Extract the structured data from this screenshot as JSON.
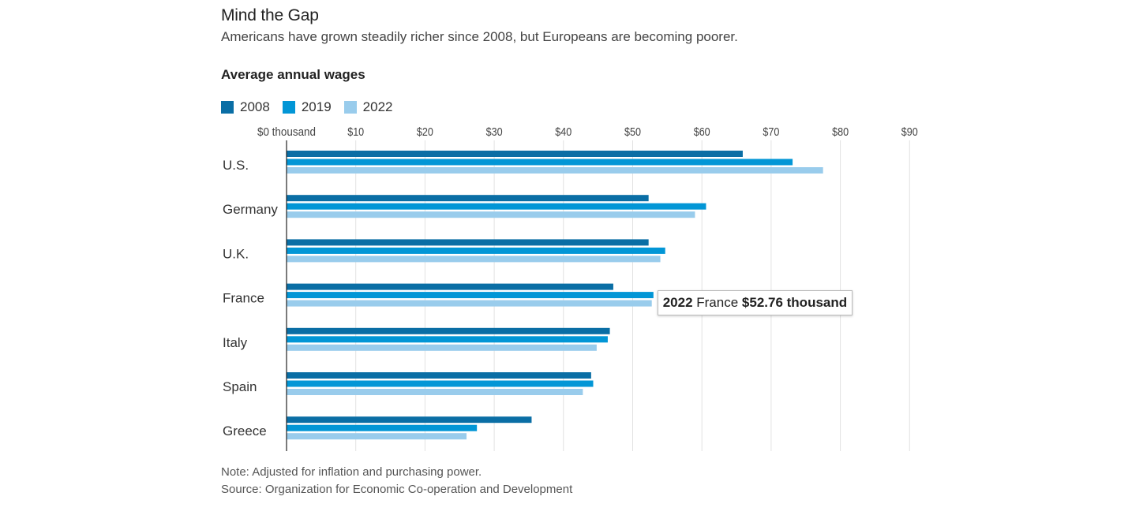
{
  "header": {
    "title": "Mind the Gap",
    "subtitle": "Americans have grown steadily richer since 2008, but Europeans are becoming poorer.",
    "chart_label": "Average annual wages"
  },
  "legend": [
    {
      "name": "2008",
      "color": "#0a6ea5"
    },
    {
      "name": "2019",
      "color": "#0296d6"
    },
    {
      "name": "2022",
      "color": "#99ccec"
    }
  ],
  "footer": {
    "note": "Note: Adjusted for inflation and purchasing power.",
    "source": "Source: Organization for Economic Co-operation and Development"
  },
  "tooltip": {
    "year": "2022",
    "country": "France",
    "value": "$52.76 thousand"
  },
  "chart_data": {
    "type": "bar",
    "orientation": "horizontal",
    "title": "Average annual wages",
    "categories": [
      "U.S.",
      "Germany",
      "U.K.",
      "France",
      "Italy",
      "Spain",
      "Greece"
    ],
    "series": [
      {
        "name": "2008",
        "color": "#0a6ea5",
        "values": [
          65.9,
          52.3,
          52.3,
          47.2,
          46.7,
          44.0,
          35.4
        ]
      },
      {
        "name": "2019",
        "color": "#0296d6",
        "values": [
          73.1,
          60.6,
          54.7,
          53.0,
          46.4,
          44.3,
          27.5
        ]
      },
      {
        "name": "2022",
        "color": "#99ccec",
        "values": [
          77.5,
          59.0,
          54.0,
          52.76,
          44.8,
          42.8,
          26.0
        ]
      }
    ],
    "xlim": [
      0,
      90
    ],
    "x_ticks": [
      {
        "value": 0,
        "label": "$0 thousand"
      },
      {
        "value": 10,
        "label": "$10"
      },
      {
        "value": 20,
        "label": "$20"
      },
      {
        "value": 30,
        "label": "$30"
      },
      {
        "value": 40,
        "label": "$40"
      },
      {
        "value": 50,
        "label": "$50"
      },
      {
        "value": 60,
        "label": "$60"
      },
      {
        "value": 70,
        "label": "$70"
      },
      {
        "value": 80,
        "label": "$80"
      },
      {
        "value": 90,
        "label": "$90"
      }
    ],
    "grid": true,
    "legend_position": "top-left",
    "note": "Note: Adjusted for inflation and purchasing power.",
    "source": "Source: Organization for Economic Co-operation and Development"
  }
}
